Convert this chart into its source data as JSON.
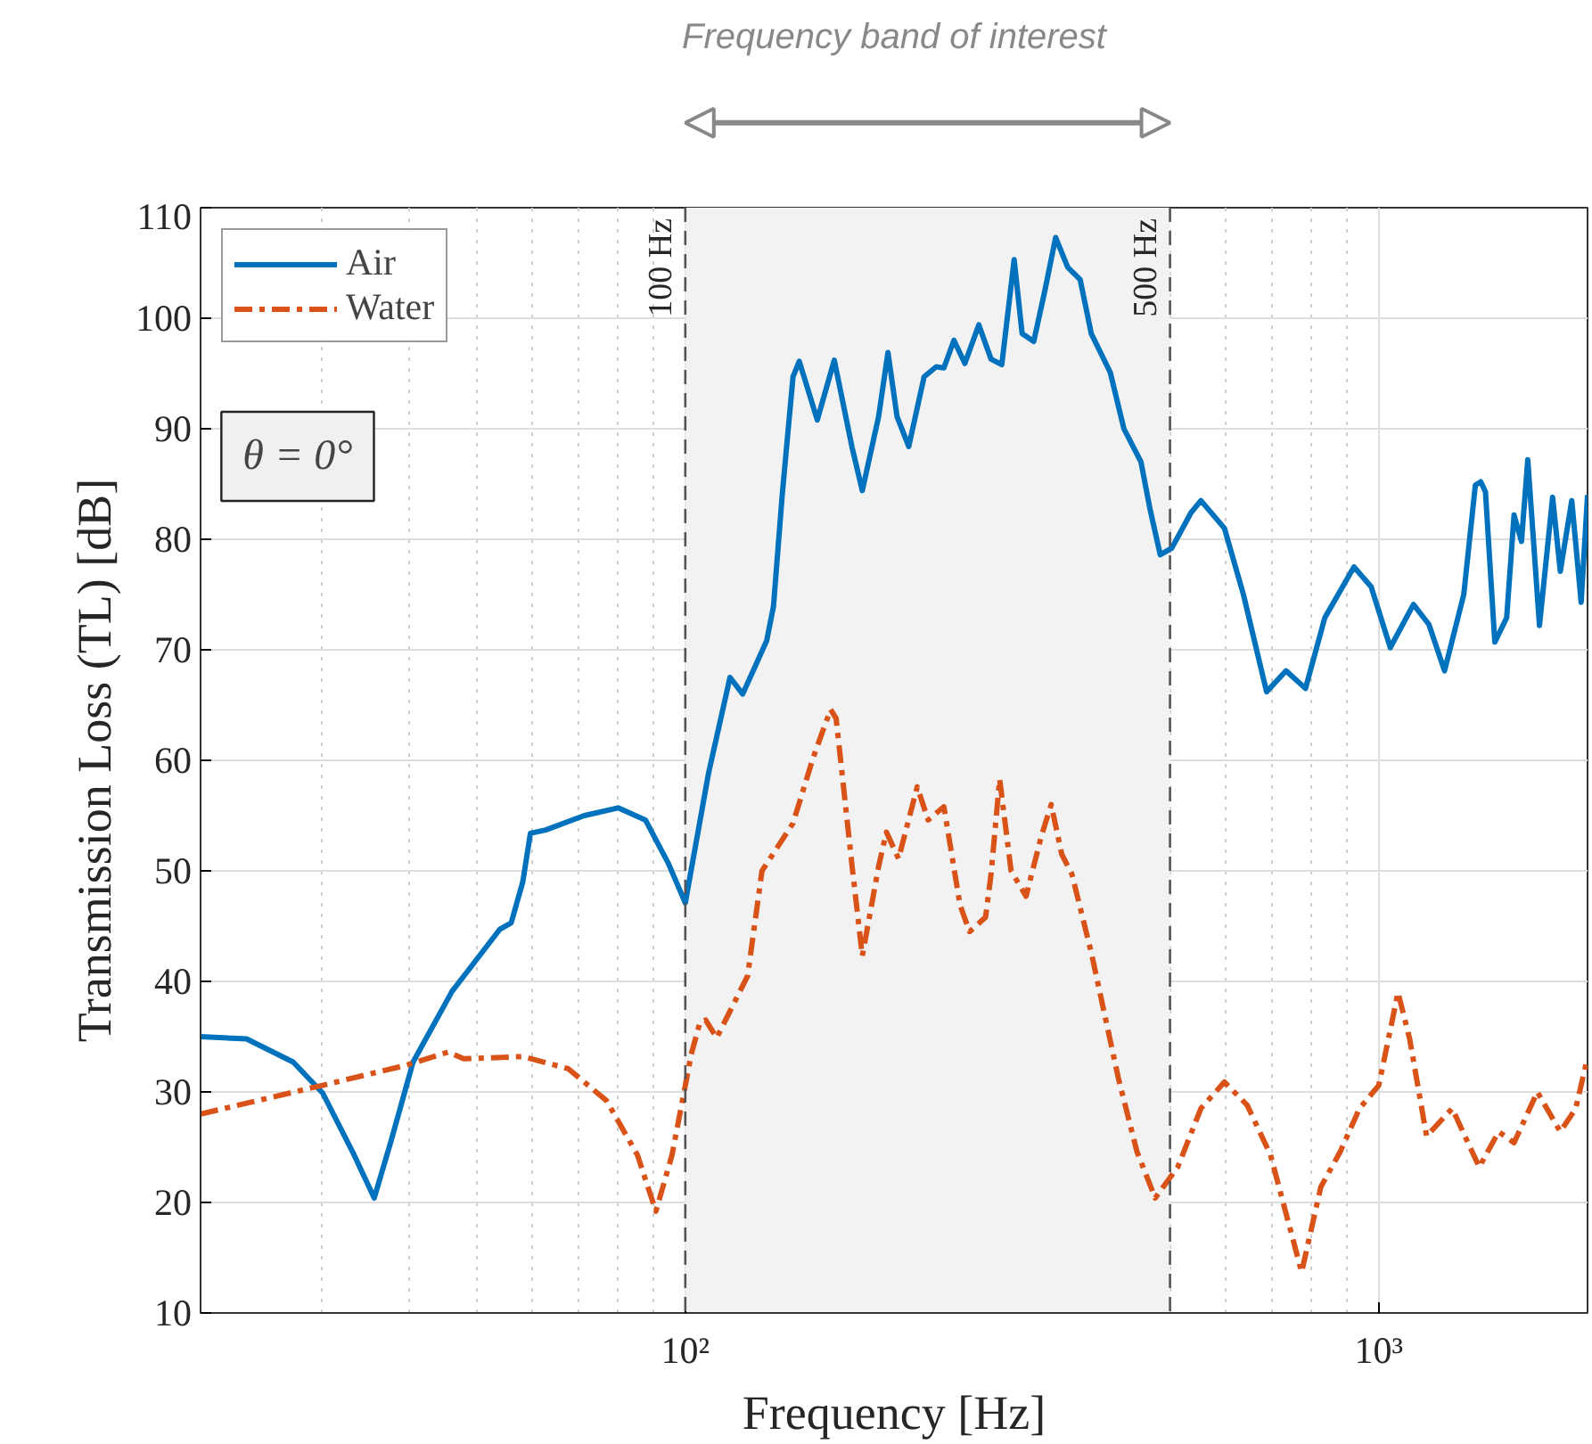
{
  "chart_data": {
    "type": "line",
    "title": "Frequency band of interest",
    "xlabel": "Frequency [Hz]",
    "ylabel": "Transmission Loss (TL) [dB]",
    "log": "x",
    "xlim": [
      20,
      2000
    ],
    "ylim": [
      10,
      110
    ],
    "xticks": [
      {
        "value": 100,
        "label": "10²"
      },
      {
        "value": 1000,
        "label": "10³"
      }
    ],
    "yticks": [
      10,
      20,
      30,
      40,
      50,
      60,
      70,
      80,
      90,
      100,
      110
    ],
    "grid": true,
    "legend": "top left",
    "series": [
      {
        "name": "Air",
        "color": "#0072bd",
        "line_style": "solid",
        "x": [
          20,
          23.3,
          27.2,
          30,
          33.3,
          35.6,
          37.7,
          40.5,
          46.1,
          54,
          56.1,
          58.3,
          59.8,
          62.9,
          71.5,
          80,
          87.6,
          94.5,
          100,
          108,
          116,
          121,
          131,
          134,
          138,
          143,
          146,
          155,
          164,
          174,
          180,
          190,
          196,
          202,
          210,
          221,
          230,
          236,
          244,
          253,
          265,
          276,
          286,
          298,
          306,
          318,
          330,
          342,
          356,
          371,
          385,
          410,
          429,
          454,
          468,
          484,
          503,
          536,
          554,
          599,
          638,
          689,
          735,
          784,
          836,
          921,
          975,
          1039,
          1122,
          1181,
          1244,
          1326,
          1378,
          1403,
          1425,
          1470,
          1529,
          1567,
          1606,
          1640,
          1705,
          1781,
          1827,
          1898,
          1958,
          2000
        ],
        "values": [
          35.0,
          34.8,
          32.7,
          29.9,
          24.3,
          20.4,
          25.7,
          32.7,
          39.1,
          44.7,
          45.3,
          49.0,
          53.4,
          53.7,
          55.0,
          55.7,
          54.6,
          50.7,
          47.1,
          58.8,
          67.5,
          66.0,
          70.8,
          73.9,
          84.1,
          94.7,
          96.1,
          90.8,
          96.2,
          88.3,
          84.4,
          91.1,
          96.9,
          91.1,
          88.4,
          94.7,
          95.6,
          95.5,
          98.0,
          95.9,
          99.4,
          96.3,
          95.8,
          105.3,
          98.6,
          97.9,
          102.5,
          107.3,
          104.6,
          103.5,
          98.6,
          95.1,
          90.0,
          87.0,
          82.7,
          78.6,
          79.2,
          82.4,
          83.5,
          81.0,
          75.0,
          66.2,
          68.1,
          66.5,
          72.9,
          77.5,
          75.7,
          70.2,
          74.1,
          72.3,
          68.1,
          75.0,
          84.9,
          85.2,
          84.3,
          70.7,
          72.9,
          82.2,
          79.8,
          87.2,
          72.2,
          83.8,
          77.1,
          83.5,
          74.3,
          84.0
        ]
      },
      {
        "name": "Water",
        "color": "#d95319",
        "line_style": "dashdot",
        "x": [
          20,
          30,
          39.5,
          45.5,
          47.9,
          58.3,
          67.8,
          77,
          85.3,
          90.7,
          95.7,
          102,
          105,
          107,
          111,
          123,
          129,
          143,
          153,
          162,
          165,
          174,
          180,
          190,
          195,
          203,
          216,
          224,
          236,
          249,
          257,
          271,
          276,
          284,
          295,
          310,
          326,
          337,
          349,
          361,
          385,
          421,
          448,
          476,
          513,
          554,
          599,
          646,
          698,
          774,
          825,
          880,
          938,
          1000,
          1066,
          1108,
          1172,
          1276,
          1396,
          1489,
          1567,
          1693,
          1827,
          1923,
          2000
        ],
        "values": [
          28.0,
          30.6,
          32.4,
          33.6,
          33.0,
          33.2,
          32.1,
          29.2,
          24.3,
          19.2,
          24.3,
          33.4,
          36.3,
          36.5,
          34.9,
          40.5,
          50.0,
          54.3,
          60.3,
          64.6,
          63.8,
          50.4,
          42.3,
          50.4,
          53.5,
          51.1,
          57.6,
          54.6,
          55.8,
          46.9,
          44.5,
          45.8,
          49.7,
          58.3,
          50.0,
          47.7,
          53.1,
          56.0,
          51.5,
          49.7,
          42.6,
          31.3,
          24.6,
          20.4,
          23.2,
          28.5,
          30.9,
          28.8,
          24.3,
          13.7,
          21.4,
          24.6,
          28.5,
          30.6,
          39.0,
          34.8,
          26.0,
          28.5,
          23.2,
          26.4,
          25.4,
          30.0,
          26.4,
          28.5,
          33.1
        ]
      }
    ],
    "bands": [
      {
        "axis": "x",
        "from": 100,
        "to": 500,
        "color": "#f2f2f2"
      }
    ],
    "ref_lines": [
      {
        "axis": "x",
        "value": 100,
        "label": "100 Hz",
        "line_style": "dashed",
        "color": "#555555"
      },
      {
        "axis": "x",
        "value": 500,
        "label": "500 Hz",
        "line_style": "dashed",
        "color": "#555555"
      }
    ],
    "annotations": [
      "θ = 0°"
    ]
  }
}
